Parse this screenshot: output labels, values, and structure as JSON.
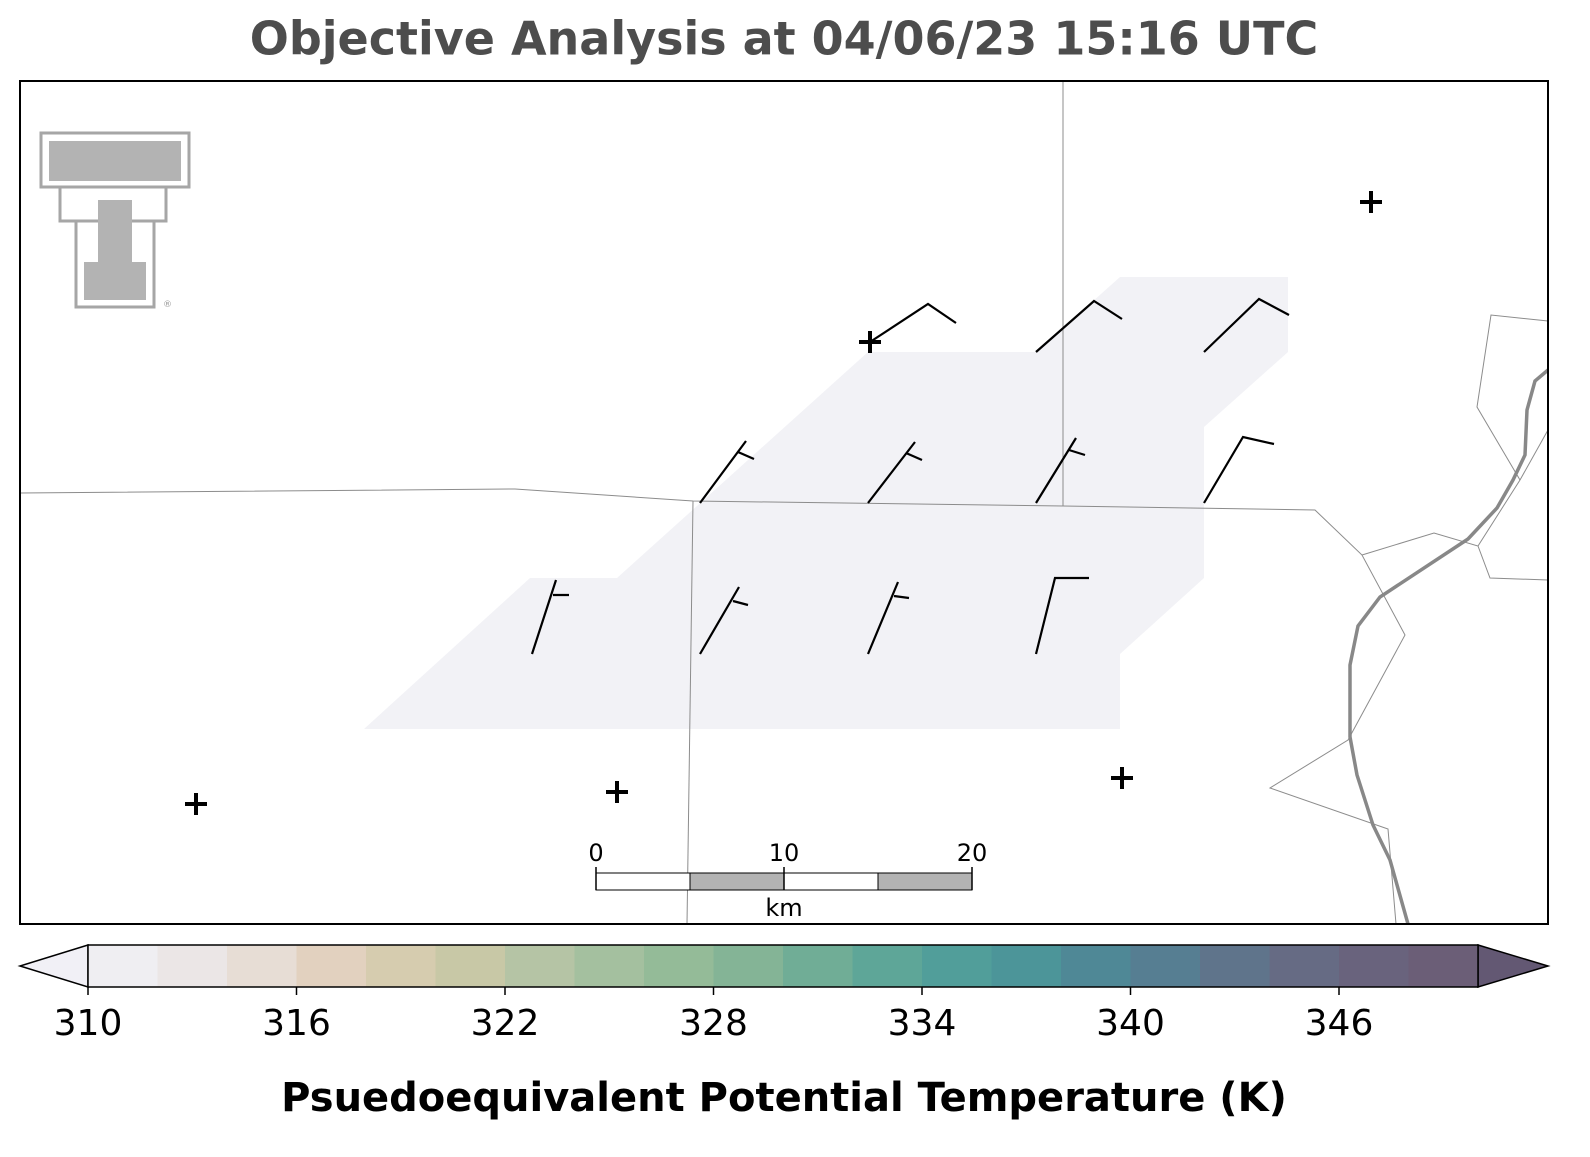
{
  "title": "Objective Analysis at 04/06/23 15:16 UTC",
  "logo_mark": "®",
  "colorbar": {
    "label": "Psuedoequivalent Potential Temperature (K)",
    "lim": [
      310,
      350
    ],
    "ticks": [
      310,
      316,
      322,
      328,
      334,
      340,
      346
    ],
    "levels": [
      310,
      312,
      314,
      316,
      318,
      320,
      322,
      324,
      326,
      328,
      330,
      332,
      334,
      336,
      338,
      340,
      342,
      344,
      346,
      348,
      350
    ],
    "colors": [
      "#efeef2",
      "#ebe6e6",
      "#e7ddd5",
      "#e2d1bf",
      "#d6ccaf",
      "#c8c8a6",
      "#b5c4a5",
      "#a4c09f",
      "#94bb98",
      "#84b496",
      "#70ad96",
      "#5ea698",
      "#519e9a",
      "#4c9599",
      "#4f8896",
      "#567e92",
      "#5f748b",
      "#666b84",
      "#69637d",
      "#6b5e77"
    ],
    "under_color": "#f1f0f6",
    "over_color": "#635873"
  },
  "scale_bar": {
    "lim": [
      0,
      20
    ],
    "ticks": [
      0,
      10,
      20
    ],
    "unit": "km"
  }
}
